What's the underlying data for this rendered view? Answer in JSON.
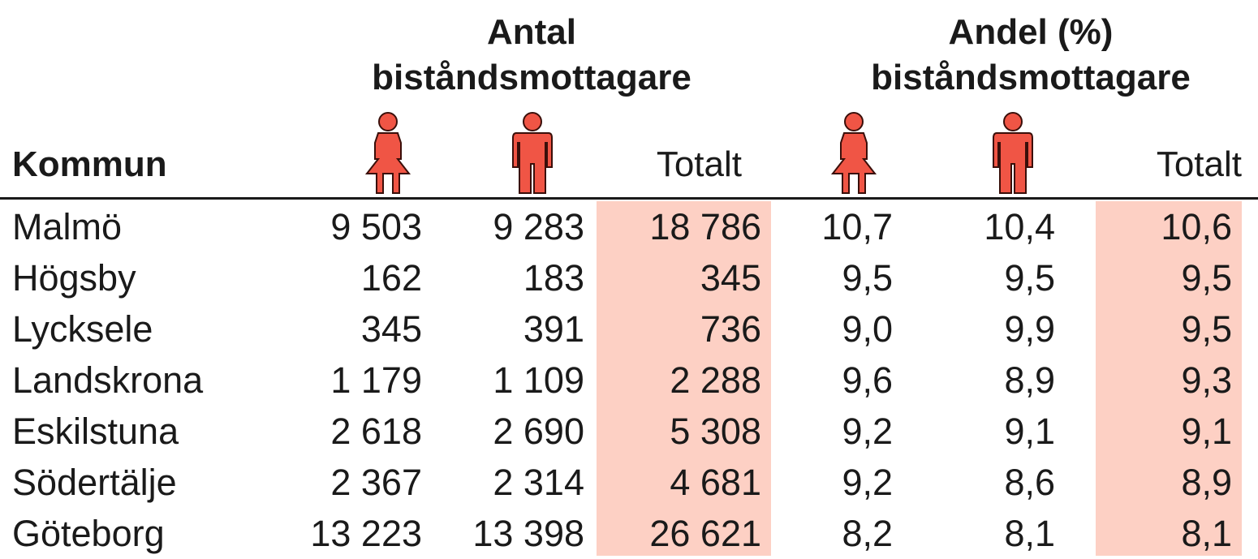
{
  "table": {
    "groups": [
      "Antal\nbiståndsmottagare",
      "Andel (%)\nbiståndsmottagare"
    ],
    "label": "Kommun",
    "totals": [
      "Totalt",
      "Totalt"
    ],
    "rows": [
      [
        "Malmö",
        "9 503",
        "9 283",
        "18 786",
        "10,7",
        "10,4",
        "10,6"
      ],
      [
        "Högsby",
        "162",
        "183",
        "345",
        "9,5",
        "9,5",
        "9,5"
      ],
      [
        "Lycksele",
        "345",
        "391",
        "736",
        "9,0",
        "9,9",
        "9,5"
      ],
      [
        "Landskrona",
        "1 179",
        "1 109",
        "2 288",
        "9,6",
        "8,9",
        "9,3"
      ],
      [
        "Eskilstuna",
        "2 618",
        "2 690",
        "5 308",
        "9,2",
        "9,1",
        "9,1"
      ],
      [
        "Södertälje",
        "2 367",
        "2 314",
        "4 681",
        "9,2",
        "8,6",
        "8,9"
      ],
      [
        "Göteborg",
        "13 223",
        "13 398",
        "26 621",
        "8,2",
        "8,1",
        "8,1"
      ]
    ]
  }
}
